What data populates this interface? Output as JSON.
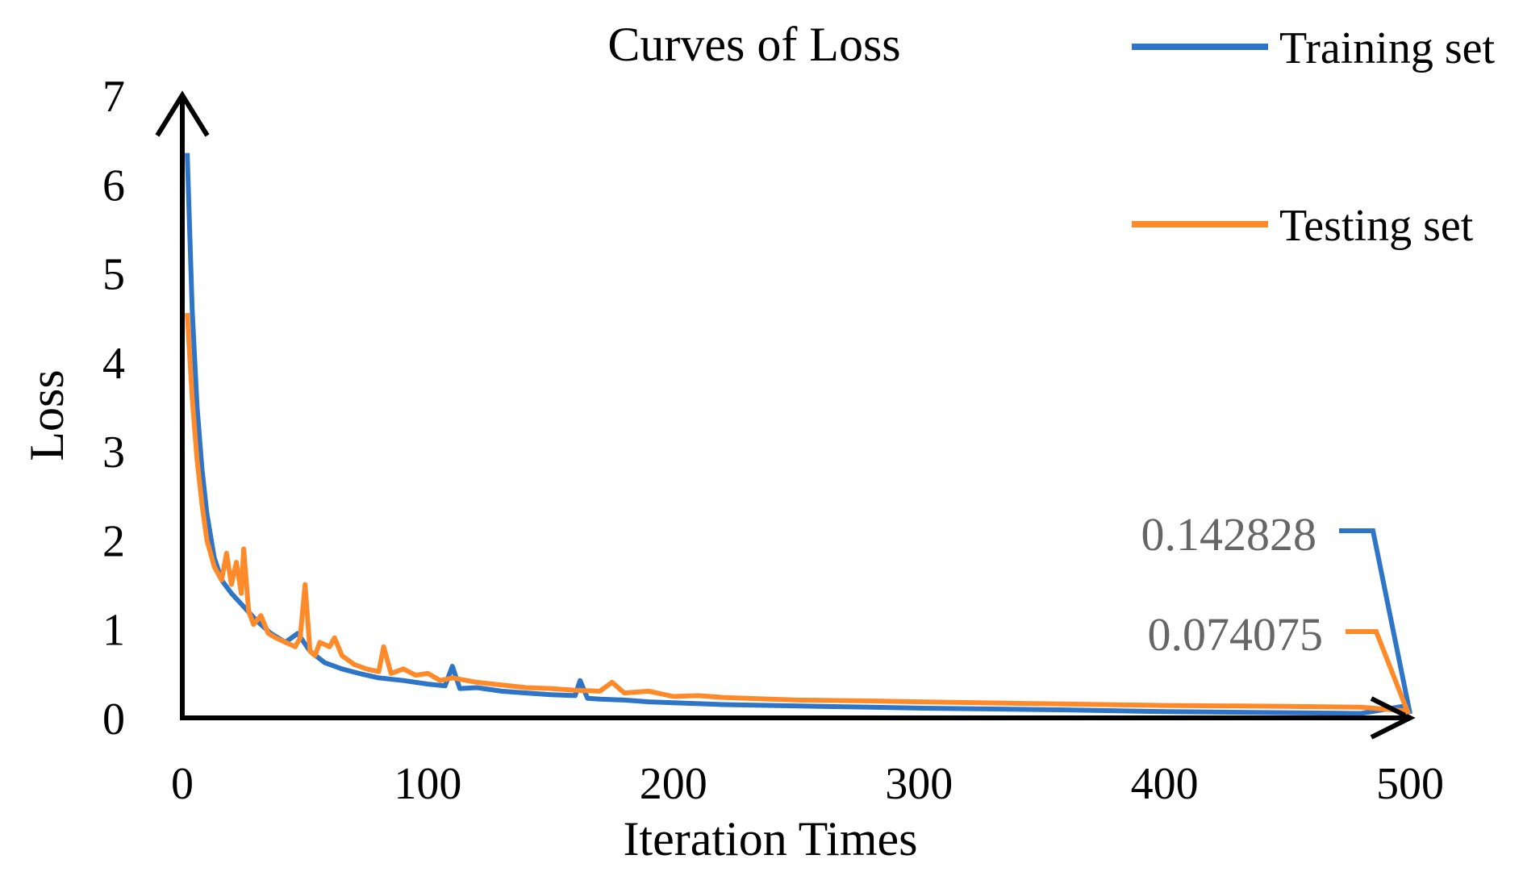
{
  "chart_data": {
    "type": "line",
    "title": "Curves of Loss",
    "xlabel": "Iteration Times",
    "ylabel": "Loss",
    "xlim": [
      0,
      500
    ],
    "ylim": [
      0,
      7
    ],
    "x_ticks": [
      "0",
      "100",
      "200",
      "300",
      "400",
      "500"
    ],
    "y_ticks": [
      "0",
      "1",
      "2",
      "3",
      "4",
      "5",
      "6",
      "7"
    ],
    "legend_position": "top-right",
    "series": [
      {
        "name": "Training set",
        "color": "#2E75C8",
        "x": [
          2,
          4,
          6,
          8,
          10,
          13,
          16,
          20,
          25,
          30,
          36,
          42,
          47,
          52,
          58,
          65,
          72,
          80,
          90,
          100,
          107,
          110,
          113,
          120,
          130,
          140,
          150,
          160,
          162,
          165,
          170,
          180,
          190,
          200,
          220,
          240,
          260,
          280,
          300,
          330,
          360,
          400,
          440,
          480,
          500
        ],
        "values": [
          6.35,
          4.6,
          3.5,
          2.8,
          2.3,
          1.8,
          1.55,
          1.4,
          1.25,
          1.1,
          0.95,
          0.85,
          0.95,
          0.75,
          0.62,
          0.55,
          0.5,
          0.45,
          0.42,
          0.38,
          0.36,
          0.58,
          0.33,
          0.34,
          0.3,
          0.28,
          0.26,
          0.25,
          0.42,
          0.22,
          0.21,
          0.2,
          0.18,
          0.17,
          0.15,
          0.14,
          0.13,
          0.12,
          0.11,
          0.1,
          0.09,
          0.07,
          0.06,
          0.05,
          0.142828
        ]
      },
      {
        "name": "Testing set",
        "color": "#FF8A2A",
        "x": [
          2,
          4,
          6,
          8,
          10,
          13,
          16,
          18,
          20,
          22,
          24,
          25,
          27,
          29,
          32,
          35,
          38,
          42,
          46,
          48,
          50,
          52,
          54,
          56,
          60,
          62,
          65,
          70,
          75,
          80,
          82,
          85,
          90,
          95,
          100,
          105,
          110,
          120,
          130,
          140,
          150,
          160,
          170,
          175,
          180,
          190,
          200,
          210,
          220,
          230,
          250,
          280,
          300,
          350,
          400,
          450,
          480,
          500
        ],
        "values": [
          4.55,
          3.6,
          2.9,
          2.4,
          2.0,
          1.7,
          1.55,
          1.85,
          1.5,
          1.75,
          1.4,
          1.9,
          1.2,
          1.05,
          1.15,
          0.95,
          0.9,
          0.85,
          0.8,
          0.9,
          1.5,
          0.75,
          0.7,
          0.85,
          0.8,
          0.9,
          0.7,
          0.6,
          0.55,
          0.52,
          0.8,
          0.5,
          0.55,
          0.48,
          0.5,
          0.42,
          0.45,
          0.4,
          0.37,
          0.34,
          0.33,
          0.31,
          0.3,
          0.4,
          0.28,
          0.3,
          0.24,
          0.25,
          0.23,
          0.22,
          0.2,
          0.19,
          0.18,
          0.16,
          0.14,
          0.13,
          0.12,
          0.074075
        ]
      }
    ],
    "annotations": [
      {
        "series": "Training set",
        "text": "0.142828"
      },
      {
        "series": "Testing set",
        "text": "0.074075"
      }
    ]
  }
}
